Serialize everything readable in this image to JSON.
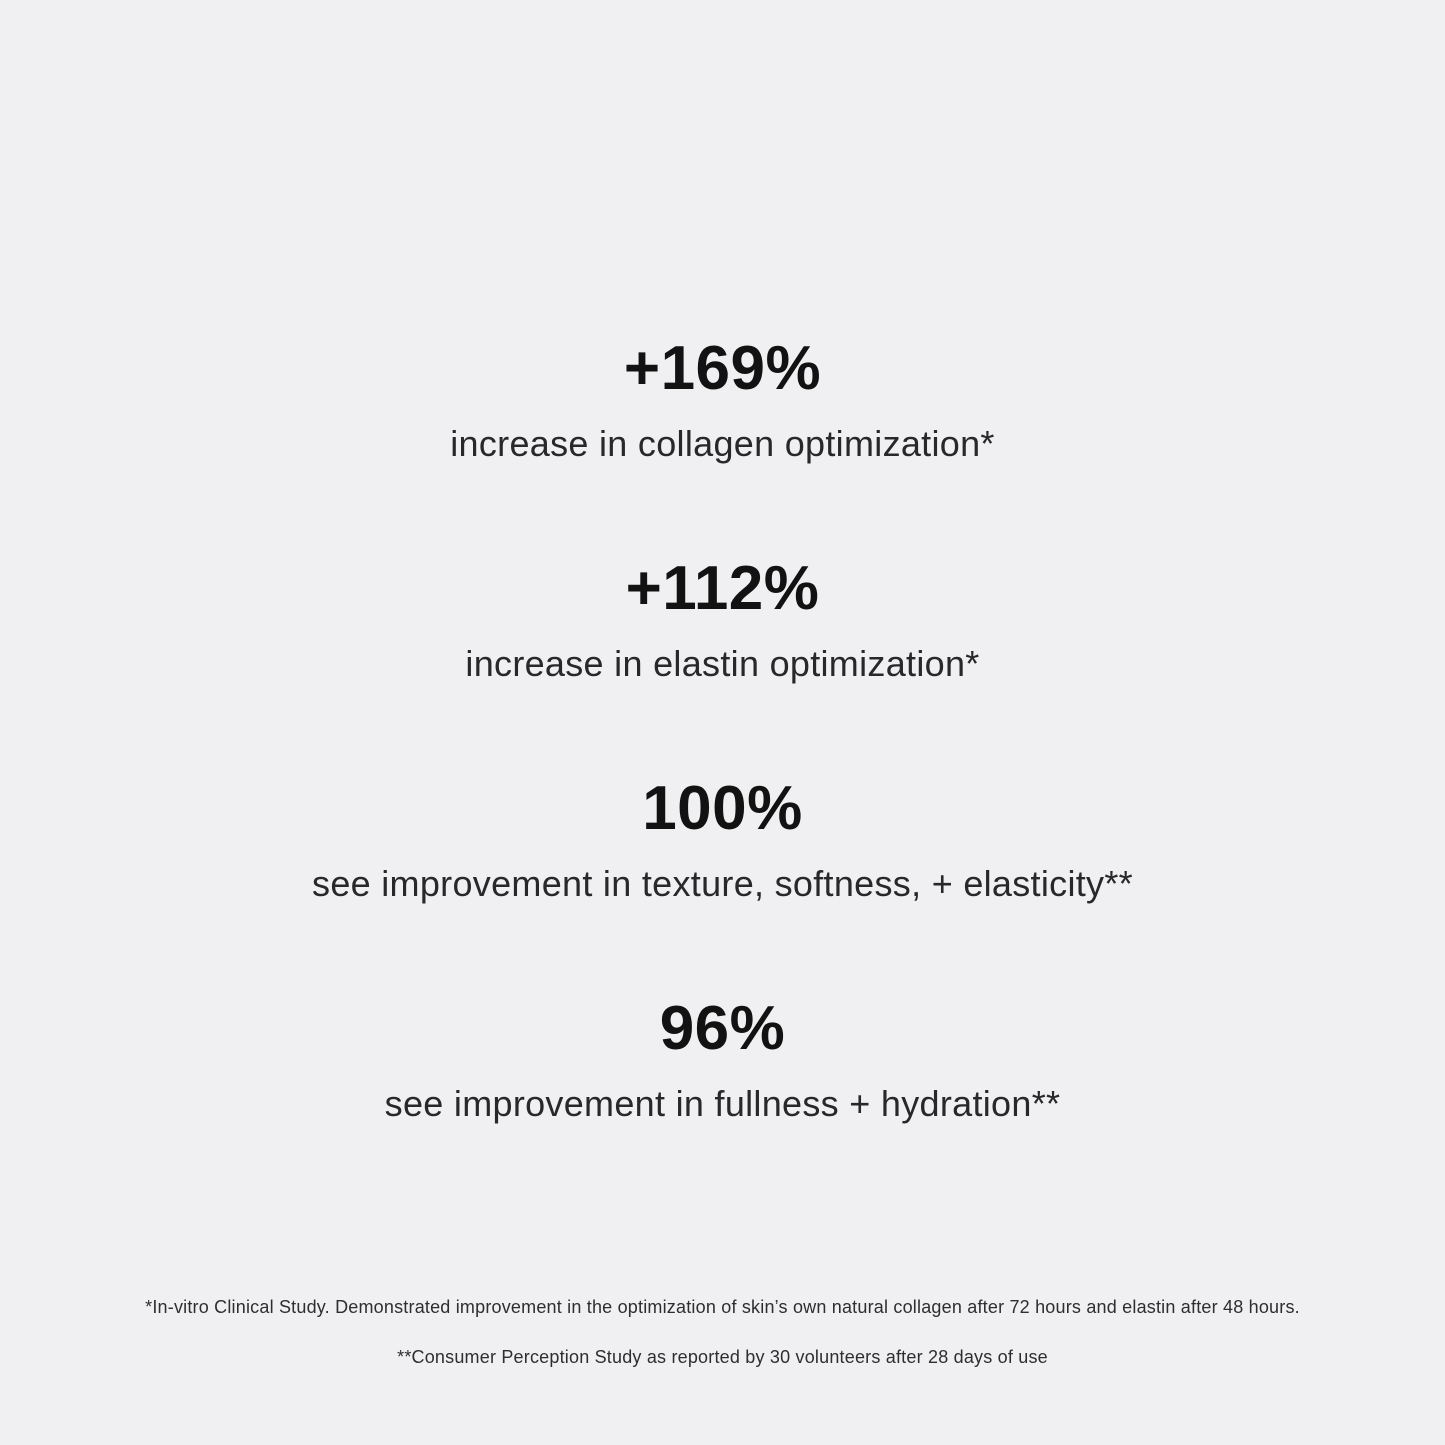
{
  "page": {
    "background_color": "#f0f0f2",
    "accent_text_color": "#121212"
  },
  "stats": [
    {
      "value": "+169%",
      "label": "increase in collagen optimization*"
    },
    {
      "value": "+112%",
      "label": "increase in elastin optimization*"
    },
    {
      "value": "100%",
      "label": "see improvement in texture, softness, + elasticity**"
    },
    {
      "value": "96%",
      "label": "see improvement in fullness + hydration**"
    }
  ],
  "footnotes": [
    "*In-vitro Clinical Study. Demonstrated improvement in the optimization of skin’s own natural collagen after 72 hours and elastin after 48 hours.",
    "**Consumer Perception Study as reported by 30 volunteers after 28 days of use"
  ]
}
